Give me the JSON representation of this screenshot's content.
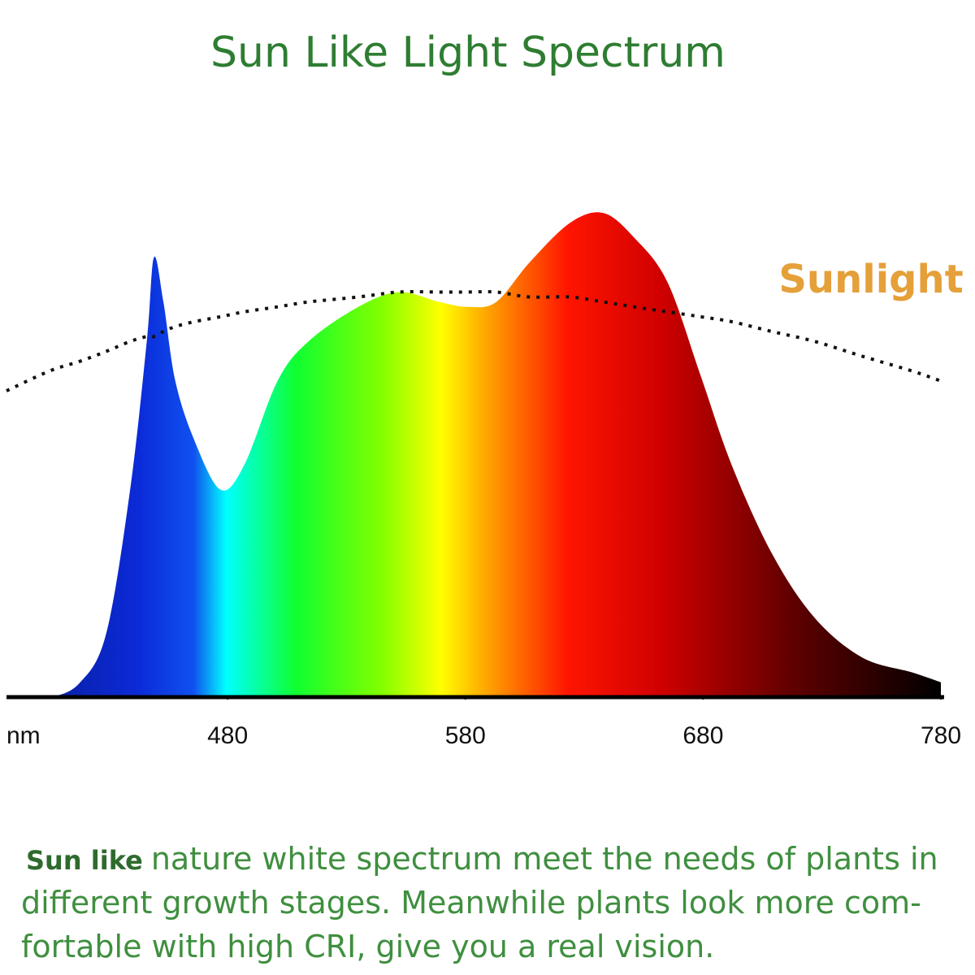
{
  "chart_data": {
    "type": "area",
    "title": "Sun Like Light Spectrum",
    "xlabel": "nm",
    "x": [
      387,
      405,
      418,
      429,
      439,
      446,
      449,
      453,
      458,
      466,
      477,
      487,
      501,
      514,
      535,
      552,
      569,
      581,
      593,
      607,
      624,
      638,
      651,
      665,
      679,
      692,
      709,
      727,
      747,
      768,
      780
    ],
    "series": [
      {
        "values": [
          0,
          0,
          3,
          13,
          42,
          72,
          89,
          80,
          64,
          52,
          42,
          47,
          64,
          72,
          79,
          82,
          80,
          79,
          80,
          88,
          96,
          98,
          93,
          84,
          65,
          47,
          29,
          16,
          8,
          5,
          3
        ]
      },
      {
        "name": "Sunlight",
        "color": "#111111",
        "style": "dotted",
        "values": [
          62,
          66,
          68,
          70,
          72,
          73,
          73,
          74,
          75,
          76,
          77,
          78,
          79,
          80,
          81,
          82,
          82,
          82,
          82,
          81,
          81,
          80,
          79,
          78,
          77,
          76,
          74,
          72,
          69,
          66,
          64
        ]
      }
    ],
    "xlim": [
      387,
      780
    ],
    "xticks": [
      480,
      580,
      680,
      780
    ],
    "ylim": [
      0,
      100
    ]
  },
  "caption": {
    "lead": "Sun like",
    "lines": [
      "nature white spectrum meet the needs of plants in",
      "different growth stages. Meanwhile plants look more com-",
      "fortable with high CRI, give you a real vision."
    ]
  }
}
